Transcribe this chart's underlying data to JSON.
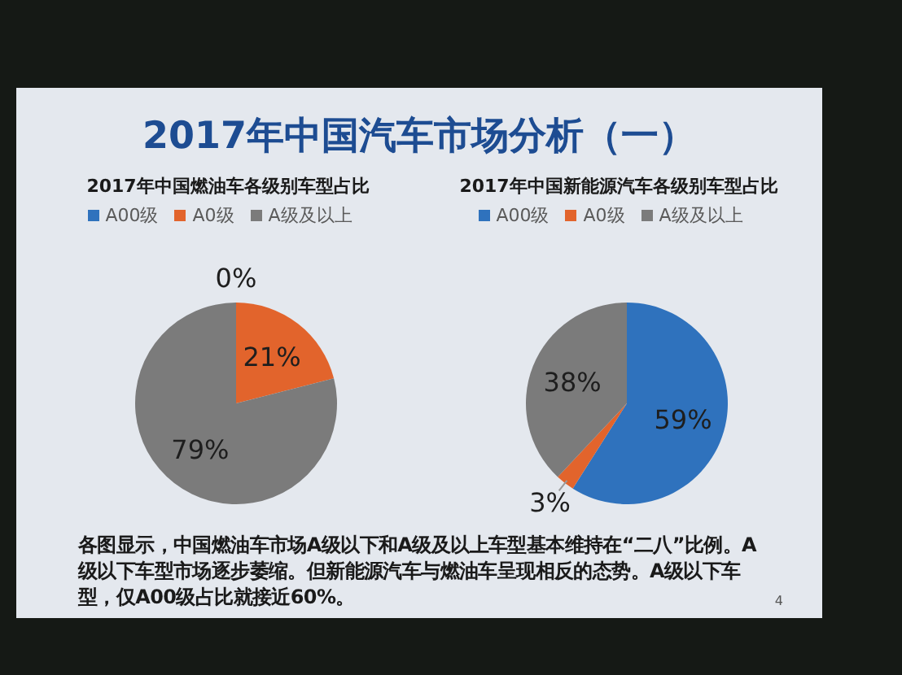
{
  "chart_data": [
    {
      "type": "other",
      "title": "2017年中国汽车市场分析（一）"
    },
    {
      "type": "pie",
      "title": "2017年中国燃油车各级别车型占比",
      "categories": [
        "A00级",
        "A0级",
        "A级及以上"
      ],
      "values": [
        0,
        21,
        79
      ],
      "colors": [
        "#2f72bd",
        "#e2642c",
        "#7b7b7b"
      ],
      "value_labels": [
        "0%",
        "21%",
        "79%"
      ],
      "legend": "top"
    },
    {
      "type": "pie",
      "title": "2017年中国新能源汽车各级别车型占比",
      "categories": [
        "A00级",
        "A0级",
        "A级及以上"
      ],
      "values": [
        59,
        3,
        38
      ],
      "colors": [
        "#2f72bd",
        "#e2642c",
        "#7b7b7b"
      ],
      "value_labels": [
        "59%",
        "3%",
        "38%"
      ],
      "legend": "top"
    },
    {
      "type": "other",
      "annotations": [
        "各图显示，中国燃油车市场A级以下和A级及以上车型基本维持在“二八”比例。A级以下车型市场逐步萎缩。但新能源汽车与燃油车呈现相反的态势。A级以下车型，仅A00级占比就接近60%。",
        "4"
      ]
    }
  ]
}
